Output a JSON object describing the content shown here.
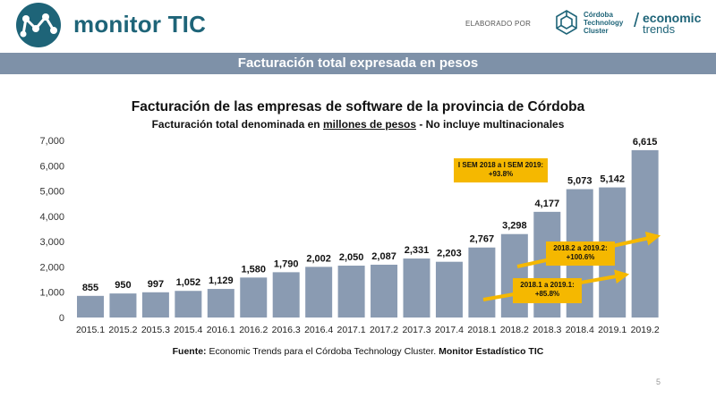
{
  "header": {
    "brand": "monitor TIC",
    "elaborado_por": "ELABORADO POR",
    "cluster_lines": [
      "Córdoba",
      "Technology",
      "Cluster"
    ],
    "economic_trends": [
      "economic",
      "trends"
    ]
  },
  "banner": {
    "title": "Facturación total expresada en pesos"
  },
  "chart_title": "Facturación de las empresas de software de la provincia de Córdoba",
  "chart_subtitle": {
    "part1": "Facturación total denominada en ",
    "underlined": "millones de pesos",
    "part2": " - No incluye multinacionales"
  },
  "source": {
    "label": "Fuente:",
    "text": " Economic Trends para el Córdoba Technology Cluster. ",
    "bold_tail": "Monitor Estadístico TIC"
  },
  "page_number": "5",
  "colors": {
    "bar": "#8a9bb2",
    "accent": "#f5b800",
    "brand": "#1e6478",
    "banner": "#7e91a8"
  },
  "chart_data": {
    "type": "bar",
    "categories": [
      "2015.1",
      "2015.2",
      "2015.3",
      "2015.4",
      "2016.1",
      "2016.2",
      "2016.3",
      "2016.4",
      "2017.1",
      "2017.2",
      "2017.3",
      "2017.4",
      "2018.1",
      "2018.2",
      "2018.3",
      "2018.4",
      "2019.1",
      "2019.2"
    ],
    "values": [
      855,
      950,
      997,
      1052,
      1129,
      1580,
      1790,
      2002,
      2050,
      2087,
      2331,
      2203,
      2767,
      3298,
      4177,
      5073,
      5142,
      6615
    ],
    "value_labels": [
      "855",
      "950",
      "997",
      "1,052",
      "1,129",
      "1,580",
      "1,790",
      "2,002",
      "2,050",
      "2,087",
      "2,331",
      "2,203",
      "2,767",
      "3,298",
      "4,177",
      "5,073",
      "5,142",
      "6,615"
    ],
    "ylim": [
      0,
      7000
    ],
    "yticks": [
      "0",
      "1,000",
      "2,000",
      "3,000",
      "4,000",
      "5,000",
      "6,000",
      "7,000"
    ],
    "grid": false,
    "annotations": [
      {
        "lines": [
          "I SEM 2018 a I SEM 2019:",
          "+93.8%"
        ]
      },
      {
        "lines": [
          "2018.2 a 2019.2:",
          "+100.6%"
        ]
      },
      {
        "lines": [
          "2018.1 a 2019.1:",
          "+85.8%"
        ]
      }
    ]
  }
}
